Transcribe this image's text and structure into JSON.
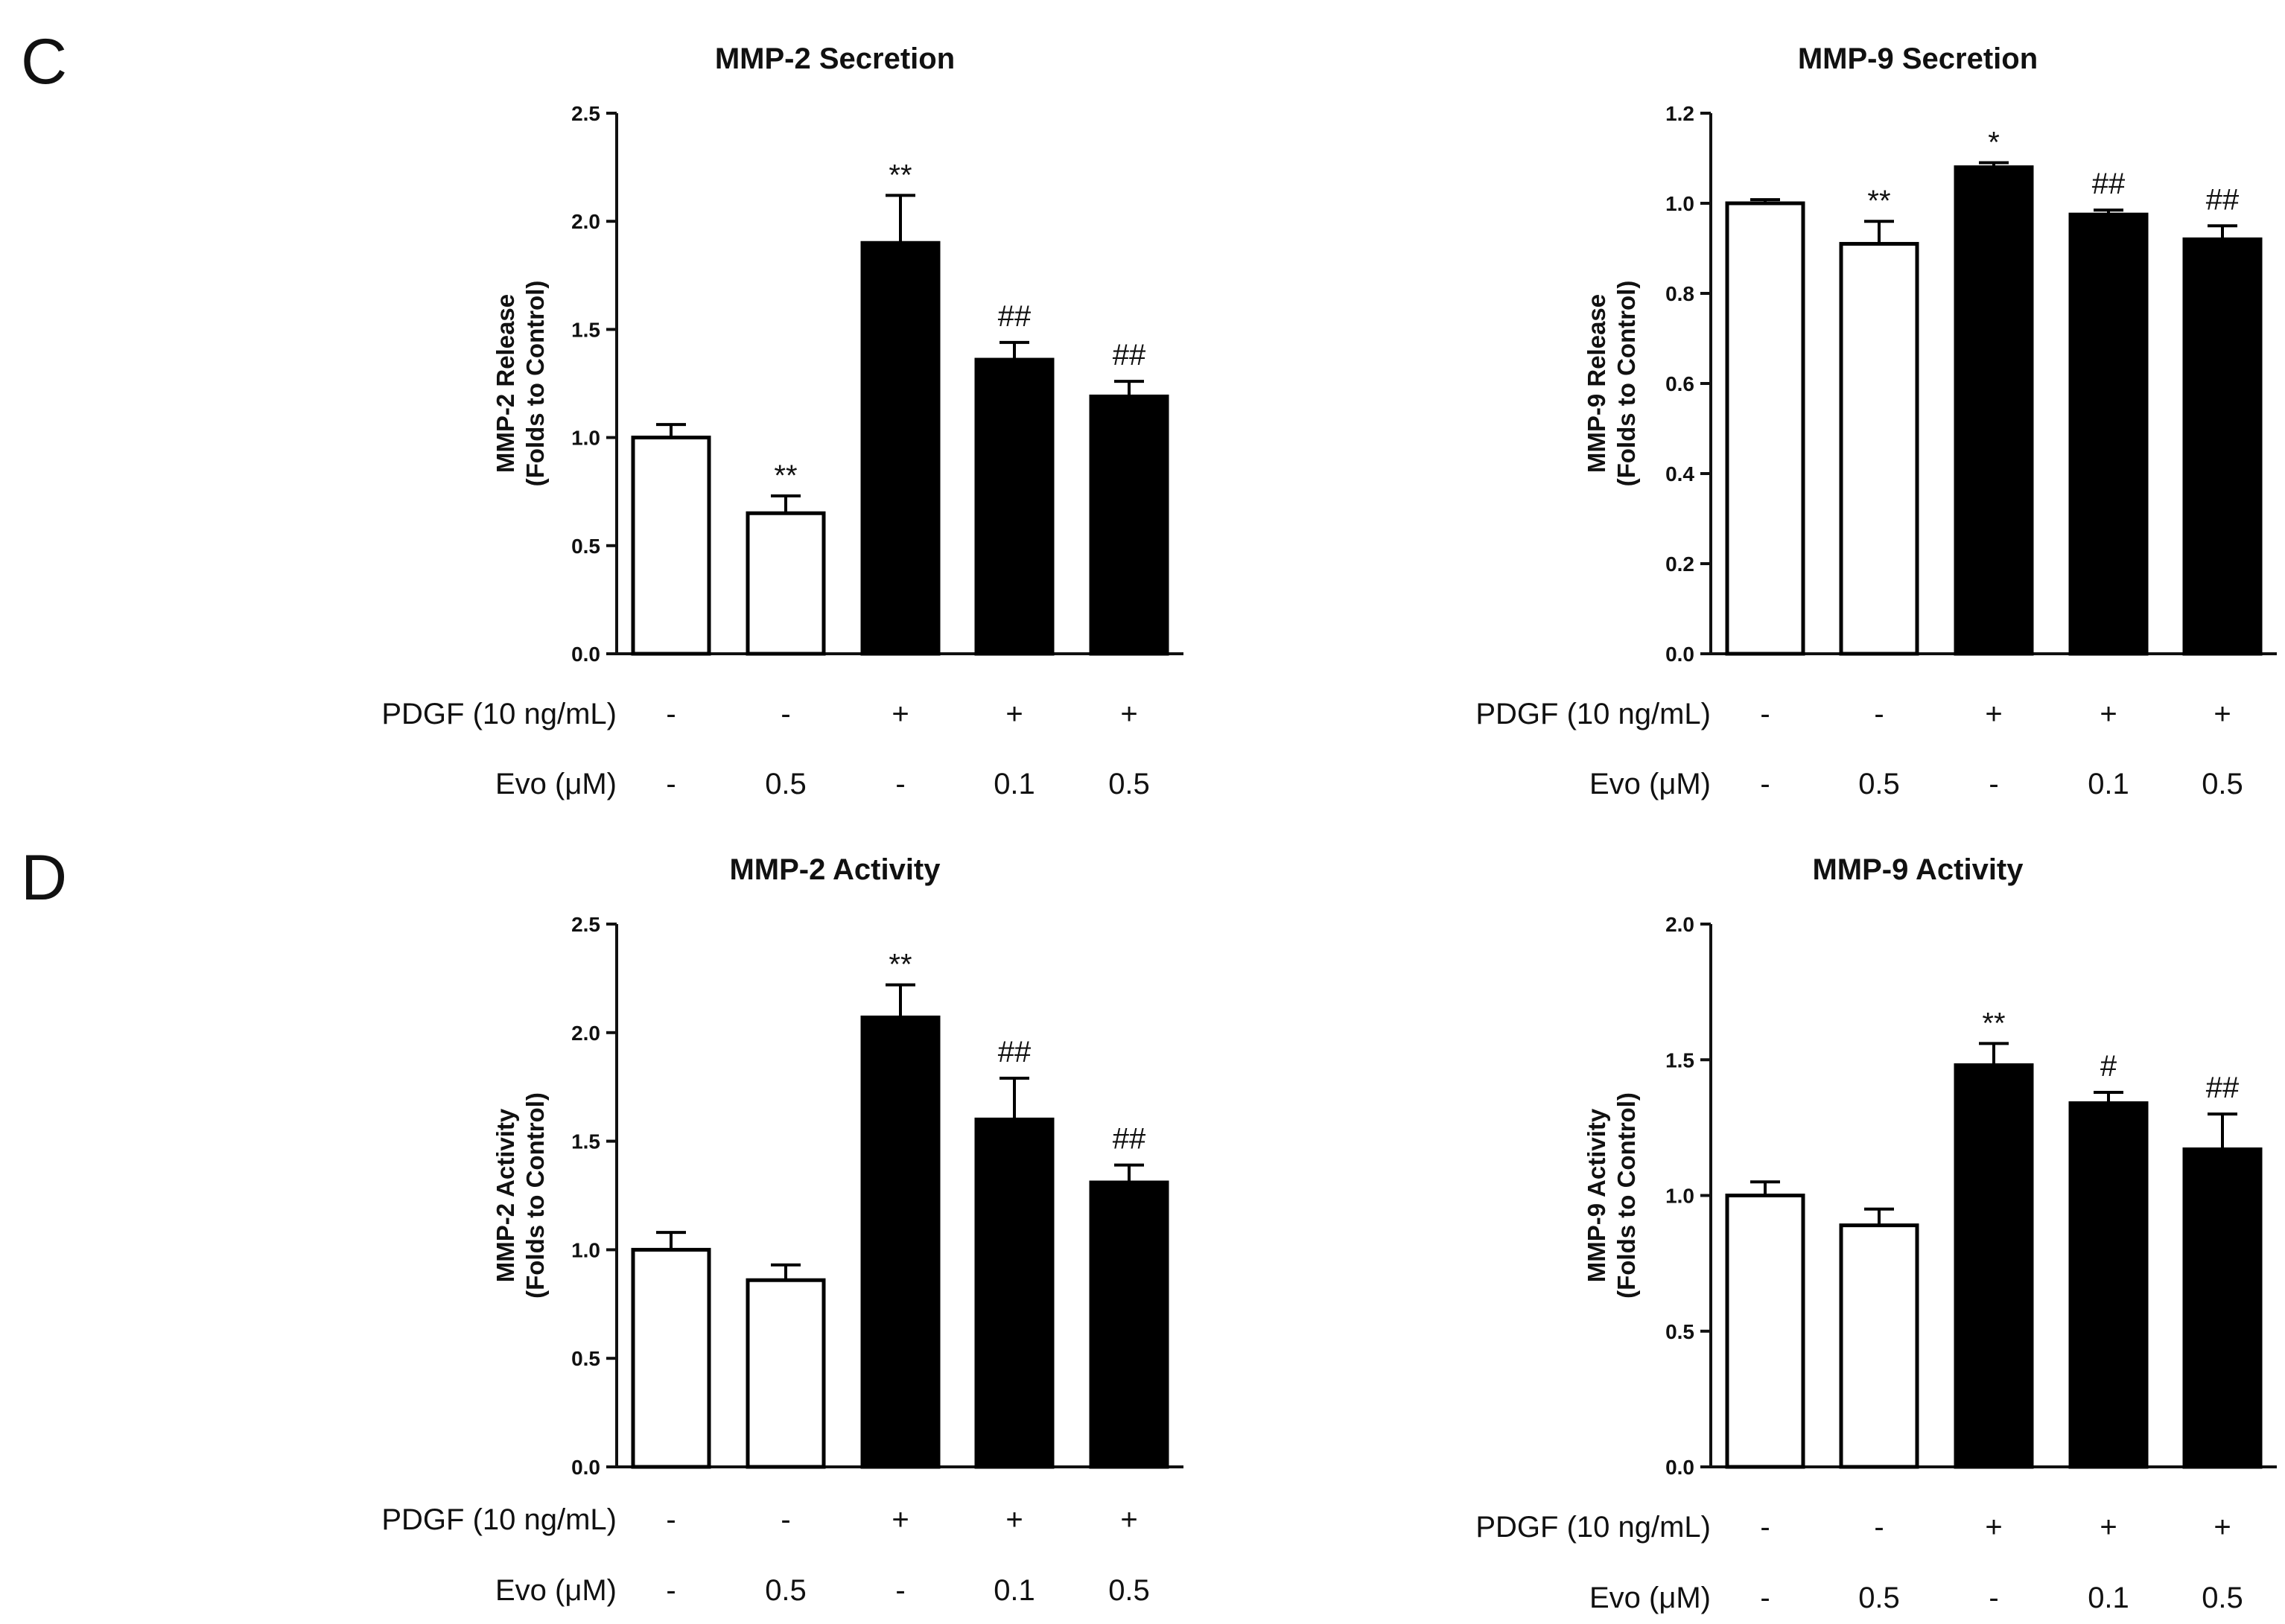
{
  "panels": {
    "C": {
      "letter": "C"
    },
    "D": {
      "letter": "D"
    }
  },
  "conditions": {
    "pdgf_label": "PDGF (10 ng/mL)",
    "evo_label": "Evo (μM)",
    "pdgf_values": [
      "-",
      "-",
      "+",
      "+",
      "+"
    ],
    "evo_values": [
      "-",
      "0.5",
      "-",
      "0.1",
      "0.5"
    ]
  },
  "colors": {
    "open_bar": "#ffffff",
    "filled_bar": "#000000",
    "ink": "#111111"
  },
  "chart_data": [
    {
      "id": "mmp2-secretion",
      "type": "bar",
      "title": "MMP-2 Secretion",
      "ylabel": [
        "MMP-2 Release",
        "(Folds to Control)"
      ],
      "xlabel": "",
      "ylim": [
        0,
        2.5
      ],
      "yticks": [
        "0.0",
        "0.5",
        "1.0",
        "1.5",
        "2.0",
        "2.5"
      ],
      "values": [
        1.0,
        0.65,
        1.9,
        1.36,
        1.19
      ],
      "errors": [
        0.06,
        0.08,
        0.22,
        0.08,
        0.07
      ],
      "fill": [
        "open",
        "open",
        "filled",
        "filled",
        "filled"
      ],
      "significance": [
        "",
        "**",
        "**",
        "##",
        "##"
      ]
    },
    {
      "id": "mmp9-secretion",
      "type": "bar",
      "title": "MMP-9 Secretion",
      "ylabel": [
        "MMP-9 Release",
        "(Folds to Control)"
      ],
      "xlabel": "",
      "ylim": [
        0,
        1.2
      ],
      "yticks": [
        "0.0",
        "0.2",
        "0.4",
        "0.6",
        "0.8",
        "1.0",
        "1.2"
      ],
      "values": [
        1.0,
        0.91,
        1.08,
        0.975,
        0.92
      ],
      "errors": [
        0.008,
        0.05,
        0.01,
        0.01,
        0.03
      ],
      "fill": [
        "open",
        "open",
        "filled",
        "filled",
        "filled"
      ],
      "significance": [
        "",
        "**",
        "*",
        "##",
        "##"
      ]
    },
    {
      "id": "mmp2-activity",
      "type": "bar",
      "title": "MMP-2 Activity",
      "ylabel": [
        "MMP-2 Activity",
        "(Folds to Control)"
      ],
      "xlabel": "",
      "ylim": [
        0,
        2.5
      ],
      "yticks": [
        "0.0",
        "0.5",
        "1.0",
        "1.5",
        "2.0",
        "2.5"
      ],
      "values": [
        1.0,
        0.86,
        2.07,
        1.6,
        1.31
      ],
      "errors": [
        0.08,
        0.07,
        0.15,
        0.19,
        0.08
      ],
      "fill": [
        "open",
        "open",
        "filled",
        "filled",
        "filled"
      ],
      "significance": [
        "",
        "",
        "**",
        "##",
        "##"
      ]
    },
    {
      "id": "mmp9-activity",
      "type": "bar",
      "title": "MMP-9 Activity",
      "ylabel": [
        "MMP-9 Activity",
        "(Folds to Control)"
      ],
      "xlabel": "",
      "ylim": [
        0,
        2.0
      ],
      "yticks": [
        "0.0",
        "0.5",
        "1.0",
        "1.5",
        "2.0"
      ],
      "values": [
        1.0,
        0.89,
        1.48,
        1.34,
        1.17
      ],
      "errors": [
        0.05,
        0.06,
        0.08,
        0.04,
        0.13
      ],
      "fill": [
        "open",
        "open",
        "filled",
        "filled",
        "filled"
      ],
      "significance": [
        "",
        "",
        "**",
        "#",
        "##"
      ]
    }
  ]
}
